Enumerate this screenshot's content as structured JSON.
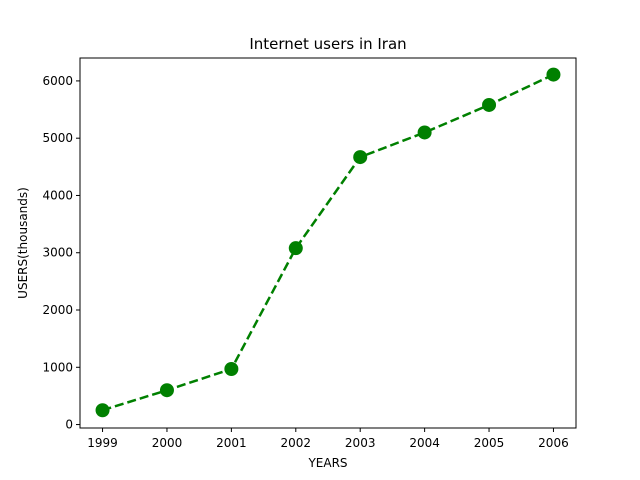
{
  "chart_data": {
    "type": "line",
    "title": "Internet users in Iran",
    "xlabel": "YEARS",
    "ylabel": "USERS(thousands)",
    "x": [
      1999,
      2000,
      2001,
      2002,
      2003,
      2004,
      2005,
      2006
    ],
    "x_tick_labels": [
      "1999",
      "2000",
      "2001",
      "2002",
      "2003",
      "2004",
      "2005",
      "2006"
    ],
    "series": [
      {
        "values": [
          250,
          600,
          970,
          3080,
          4670,
          5100,
          5580,
          6110
        ],
        "color": "#008000",
        "line_style": "dashed",
        "marker": "circle"
      }
    ],
    "y_ticks": [
      0,
      1000,
      2000,
      3000,
      4000,
      5000,
      6000
    ],
    "y_tick_labels": [
      "0",
      "1000",
      "2000",
      "3000",
      "4000",
      "5000",
      "6000"
    ],
    "ylim": [
      -60,
      6400
    ],
    "xlim": [
      1998.65,
      2006.35
    ],
    "grid": false
  }
}
